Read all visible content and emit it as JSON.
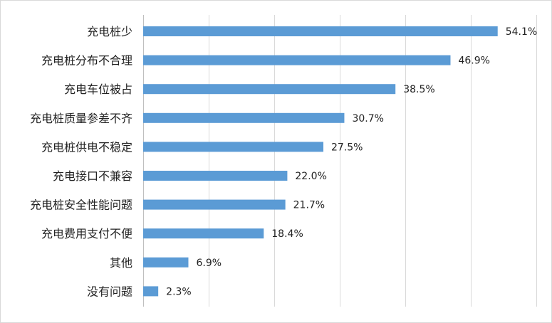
{
  "chart_data": {
    "type": "bar",
    "orientation": "horizontal",
    "categories": [
      "充电桩少",
      "充电桩分布不合理",
      "充电车位被占",
      "充电桩质量参差不齐",
      "充电桩供电不稳定",
      "充电接口不兼容",
      "充电桩安全性能问题",
      "充电费用支付不便",
      "其他",
      "没有问题"
    ],
    "values": [
      54.1,
      46.9,
      38.5,
      30.7,
      27.5,
      22.0,
      21.7,
      18.4,
      6.9,
      2.3
    ],
    "value_labels": [
      "54.1%",
      "46.9%",
      "38.5%",
      "30.7%",
      "27.5%",
      "22.0%",
      "21.7%",
      "18.4%",
      "6.9%",
      "2.3%"
    ],
    "title": "",
    "xlabel": "",
    "ylabel": "",
    "xlim": [
      0,
      60
    ],
    "grid": true,
    "legend": "none",
    "bar_color": "#5b9bd5",
    "grid_color": "#d9d9d9"
  }
}
